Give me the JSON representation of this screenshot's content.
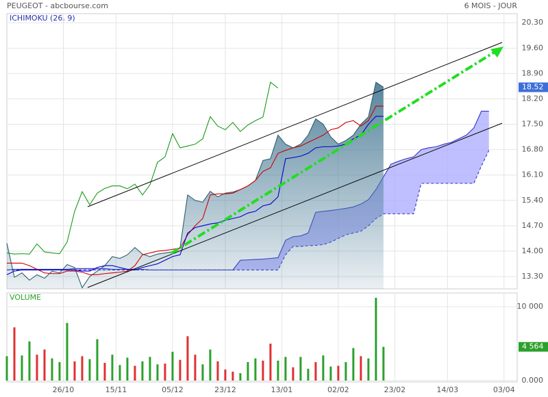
{
  "header": {
    "title": "PEUGEOT - abcbourse.com",
    "period": "6 MOIS - JOUR"
  },
  "chart_data": [
    {
      "type": "line",
      "title": "ICHIMOKU (26, 9)",
      "grid": true,
      "x": [
        0,
        2,
        4,
        6,
        8,
        10,
        12,
        14,
        16,
        18,
        20,
        22,
        24,
        26,
        28,
        30,
        32,
        34,
        36,
        38,
        40,
        42,
        44,
        46,
        48,
        50,
        52,
        54,
        56,
        58,
        60,
        62,
        64,
        66,
        68,
        70,
        72,
        74,
        76,
        78,
        80,
        82,
        84,
        86,
        88,
        90,
        92,
        94,
        96,
        98,
        100,
        102,
        104,
        106,
        108,
        110,
        112,
        114,
        116,
        118,
        120,
        122,
        124,
        126,
        128
      ],
      "xlim": [
        0,
        135.5
      ],
      "xticks": [
        {
          "value": 15,
          "label": "26/10"
        },
        {
          "value": 29,
          "label": "15/11"
        },
        {
          "value": 44,
          "label": "05/12"
        },
        {
          "value": 58,
          "label": "23/12"
        },
        {
          "value": 73,
          "label": "13/01"
        },
        {
          "value": 88,
          "label": "02/02"
        },
        {
          "value": 103,
          "label": "23/02"
        },
        {
          "value": 117,
          "label": "14/03"
        },
        {
          "value": 132,
          "label": "03/04"
        }
      ],
      "ylim": [
        12.96,
        20.55
      ],
      "yticks": [
        {
          "value": 13.3,
          "label": "13.30"
        },
        {
          "value": 14,
          "label": "14.00"
        },
        {
          "value": 14.7,
          "label": "14.70"
        },
        {
          "value": 15.4,
          "label": "15.40"
        },
        {
          "value": 16.1,
          "label": "16.10"
        },
        {
          "value": 16.8,
          "label": "16.80"
        },
        {
          "value": 17.5,
          "label": "17.50"
        },
        {
          "value": 18.2,
          "label": "18.20"
        },
        {
          "value": 18.9,
          "label": "18.90"
        },
        {
          "value": 19.6,
          "label": "19.60"
        },
        {
          "value": 20.3,
          "label": "20.30"
        }
      ],
      "last_value": 18.52,
      "last_color": "#3d6fd8",
      "cloud_fill": "#aaaaff",
      "series": [
        {
          "kind": "dashed",
          "color": "#3333cc",
          "values": [
            13.48,
            13.48,
            13.48,
            13.48,
            13.48,
            13.48,
            13.48,
            13.48,
            13.48,
            13.48,
            13.48,
            13.48,
            13.48,
            13.48,
            13.48,
            13.48,
            13.48,
            13.48,
            13.48,
            13.48,
            13.48,
            13.48,
            13.48,
            13.48,
            13.48,
            13.48,
            13.48,
            13.48,
            13.48,
            13.48,
            13.48,
            13.48,
            13.48,
            13.48,
            13.48,
            13.48,
            13.48,
            13.9,
            14.13,
            14.13,
            14.15,
            14.16,
            14.18,
            14.25,
            14.35,
            14.45,
            14.5,
            14.55,
            14.7,
            14.9,
            15.03,
            15.03,
            15.03,
            15.03,
            15.03,
            15.87,
            15.87,
            15.87,
            15.87,
            15.87,
            15.87,
            15.87,
            15.87,
            16.35,
            16.78
          ]
        },
        {
          "kind": "line",
          "color": "#3333cc",
          "values": [
            13.48,
            13.5,
            13.5,
            13.5,
            13.5,
            13.5,
            13.5,
            13.5,
            13.5,
            13.52,
            13.52,
            13.52,
            13.52,
            13.52,
            13.5,
            13.5,
            13.5,
            13.5,
            13.5,
            13.48,
            13.48,
            13.48,
            13.48,
            13.48,
            13.48,
            13.48,
            13.48,
            13.48,
            13.48,
            13.48,
            13.48,
            13.75,
            13.76,
            13.77,
            13.78,
            13.8,
            13.82,
            14.3,
            14.4,
            14.42,
            14.5,
            15.07,
            15.1,
            15.12,
            15.15,
            15.18,
            15.22,
            15.3,
            15.42,
            15.7,
            16.05,
            16.4,
            16.48,
            16.55,
            16.6,
            16.8,
            16.85,
            16.88,
            16.95,
            17.0,
            17.1,
            17.2,
            17.4,
            17.86,
            17.86
          ]
        },
        {
          "kind": "area",
          "color": "#2f5d70",
          "values": [
            14.22,
            13.28,
            13.4,
            13.2,
            13.35,
            13.25,
            13.45,
            13.4,
            13.63,
            13.55,
            12.99,
            13.3,
            13.45,
            13.6,
            13.85,
            13.8,
            13.9,
            14.1,
            13.92,
            13.85,
            13.92,
            13.95,
            13.98,
            14.1,
            15.55,
            15.4,
            15.35,
            15.65,
            15.5,
            15.6,
            15.63,
            15.7,
            15.8,
            15.95,
            16.5,
            16.55,
            17.2,
            16.95,
            16.85,
            16.95,
            17.2,
            17.65,
            17.5,
            17.15,
            16.95,
            17.05,
            17.2,
            17.5,
            17.7,
            18.66,
            18.52,
            null,
            null,
            null,
            null,
            null,
            null,
            null,
            null,
            null,
            null,
            null,
            null,
            null,
            null
          ]
        },
        {
          "kind": "line",
          "color": "#cc0000",
          "values": [
            13.67,
            13.67,
            13.67,
            13.6,
            13.5,
            13.4,
            13.38,
            13.38,
            13.45,
            13.45,
            13.42,
            13.35,
            13.35,
            13.38,
            13.4,
            13.42,
            13.45,
            13.6,
            13.9,
            13.95,
            14.0,
            14.02,
            14.05,
            14.08,
            14.45,
            14.7,
            14.9,
            15.55,
            15.58,
            15.58,
            15.6,
            15.7,
            15.8,
            15.95,
            16.2,
            16.3,
            16.7,
            16.78,
            16.85,
            16.9,
            17.0,
            17.1,
            17.2,
            17.35,
            17.4,
            17.55,
            17.6,
            17.45,
            17.6,
            18.0,
            18.0,
            null,
            null,
            null,
            null,
            null,
            null,
            null,
            null,
            null,
            null,
            null,
            null,
            null,
            null
          ]
        },
        {
          "kind": "line",
          "color": "#0000cc",
          "values": [
            13.35,
            13.45,
            13.48,
            13.48,
            13.48,
            13.48,
            13.48,
            13.48,
            13.48,
            13.48,
            13.45,
            13.45,
            13.55,
            13.6,
            13.6,
            13.55,
            13.5,
            13.48,
            13.55,
            13.6,
            13.65,
            13.75,
            13.85,
            13.9,
            14.5,
            14.65,
            14.7,
            14.75,
            14.78,
            14.85,
            14.9,
            14.95,
            15.05,
            15.1,
            15.25,
            15.3,
            15.5,
            16.55,
            16.58,
            16.62,
            16.7,
            16.85,
            16.88,
            16.88,
            16.9,
            16.95,
            17.1,
            17.2,
            17.5,
            17.72,
            17.72,
            null,
            null,
            null,
            null,
            null,
            null,
            null,
            null,
            null,
            null,
            null,
            null,
            null,
            null
          ]
        },
        {
          "kind": "line",
          "color": "#1a9a1a",
          "values": [
            13.95,
            13.92,
            13.93,
            13.92,
            14.2,
            13.98,
            13.95,
            13.93,
            14.25,
            15.1,
            15.64,
            15.28,
            15.6,
            15.73,
            15.8,
            15.8,
            15.72,
            15.85,
            15.55,
            15.83,
            16.45,
            16.6,
            17.24,
            16.85,
            16.9,
            16.95,
            17.1,
            17.71,
            17.45,
            17.35,
            17.55,
            17.3,
            17.48,
            17.6,
            17.7,
            18.66,
            18.5,
            null,
            null,
            null,
            null,
            null,
            null,
            null,
            null,
            null,
            null,
            null,
            null,
            null,
            null,
            null,
            null,
            null,
            null,
            null,
            null,
            null,
            null,
            null,
            null,
            null,
            null,
            null,
            null
          ]
        }
      ]
    },
    {
      "type": "bar",
      "title": "VOLUME",
      "grid": true,
      "ylim": [
        0,
        11670
      ],
      "yticks": [
        {
          "value": 0,
          "label": "0.000"
        },
        {
          "value": 10000,
          "label": "10 000"
        }
      ],
      "last_label": "4 564",
      "last_color": "#2ca02c",
      "values": [
        3300,
        7200,
        3400,
        5300,
        3500,
        4200,
        3000,
        2500,
        7800,
        2600,
        3300,
        2900,
        5600,
        2400,
        3500,
        2100,
        3100,
        2000,
        2600,
        3200,
        2200,
        2300,
        3900,
        2800,
        6000,
        3500,
        2200,
        4200,
        2600,
        1500,
        1200,
        1000,
        2500,
        3000,
        2700,
        5000,
        2700,
        3200,
        1800,
        3200,
        1600,
        2500,
        3400,
        1900,
        2000,
        2500,
        4400,
        3300,
        3000,
        11200,
        4564
      ],
      "colors": [
        "#2ca02c",
        "#e03030",
        "#2ca02c",
        "#2ca02c",
        "#e03030",
        "#e03030",
        "#2ca02c",
        "#2ca02c",
        "#2ca02c",
        "#e03030",
        "#e03030",
        "#2ca02c",
        "#2ca02c",
        "#e03030",
        "#2ca02c",
        "#2ca02c",
        "#2ca02c",
        "#e03030",
        "#2ca02c",
        "#2ca02c",
        "#2ca02c",
        "#e03030",
        "#2ca02c",
        "#e03030",
        "#e03030",
        "#e03030",
        "#2ca02c",
        "#2ca02c",
        "#e03030",
        "#e03030",
        "#e03030",
        "#2ca02c",
        "#2ca02c",
        "#2ca02c",
        "#e03030",
        "#e03030",
        "#2ca02c",
        "#2ca02c",
        "#e03030",
        "#2ca02c",
        "#2ca02c",
        "#e03030",
        "#2ca02c",
        "#2ca02c",
        "#e03030",
        "#2ca02c",
        "#2ca02c",
        "#e03030",
        "#2ca02c",
        "#2ca02c",
        "#2ca02c"
      ]
    }
  ]
}
